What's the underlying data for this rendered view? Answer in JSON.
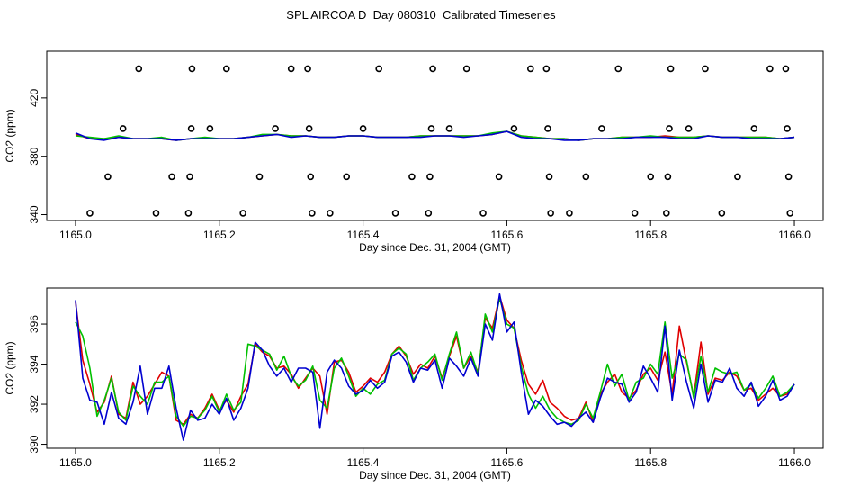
{
  "title": "SPL AIRCOA D  Day 080310  Calibrated Timeseries",
  "colors": {
    "red": "#e00000",
    "green": "#00c000",
    "blue": "#0000d0",
    "axis": "#000000"
  },
  "chart_data": [
    {
      "type": "line",
      "xlabel": "Day since Dec. 31, 2004 (GMT)",
      "ylabel": "CO2 (ppm)",
      "xlim": [
        1164.96,
        1166.04
      ],
      "ylim": [
        336,
        452
      ],
      "xticks": [
        "1165.0",
        "1165.2",
        "1165.4",
        "1165.6",
        "1165.8",
        "1166.0"
      ],
      "xtick_values": [
        1165.0,
        1165.2,
        1165.4,
        1165.6,
        1165.8,
        1166.0
      ],
      "yticks": [
        "340",
        "380",
        "420"
      ],
      "ytick_values": [
        340,
        380,
        420
      ],
      "x": [
        1165.0,
        1165.02,
        1165.04,
        1165.06,
        1165.08,
        1165.1,
        1165.12,
        1165.14,
        1165.16,
        1165.18,
        1165.2,
        1165.22,
        1165.24,
        1165.26,
        1165.28,
        1165.3,
        1165.32,
        1165.34,
        1165.36,
        1165.38,
        1165.4,
        1165.42,
        1165.44,
        1165.46,
        1165.48,
        1165.5,
        1165.52,
        1165.54,
        1165.56,
        1165.58,
        1165.6,
        1165.62,
        1165.64,
        1165.66,
        1165.68,
        1165.7,
        1165.72,
        1165.74,
        1165.76,
        1165.78,
        1165.8,
        1165.82,
        1165.84,
        1165.86,
        1165.88,
        1165.9,
        1165.92,
        1165.94,
        1165.96,
        1165.98,
        1166.0
      ],
      "series": [
        {
          "color": "#e00000",
          "values": [
            395,
            392,
            392,
            393,
            392,
            392,
            392,
            391,
            392,
            392,
            392,
            392,
            393,
            394,
            395,
            394,
            394,
            393,
            393,
            394,
            394,
            393,
            393,
            393,
            394,
            394,
            394,
            394,
            394,
            395,
            397,
            394,
            393,
            392,
            392,
            391,
            392,
            392,
            393,
            393,
            393,
            394,
            393,
            393,
            394,
            393,
            393,
            393,
            393,
            392,
            393
          ]
        },
        {
          "color": "#00c000",
          "values": [
            394,
            393,
            392,
            394,
            392,
            392,
            393,
            391,
            392,
            393,
            392,
            392,
            393,
            395,
            395,
            394,
            394,
            393,
            393,
            394,
            394,
            393,
            393,
            393,
            394,
            394,
            394,
            394,
            394,
            396,
            397,
            394,
            393,
            392,
            392,
            391,
            392,
            392,
            393,
            393,
            394,
            393,
            393,
            393,
            394,
            393,
            393,
            393,
            393,
            392,
            393
          ]
        },
        {
          "color": "#0000d0",
          "values": [
            396,
            392,
            391,
            393,
            392,
            392,
            392,
            391,
            392,
            392,
            392,
            392,
            393,
            394,
            395,
            393,
            394,
            393,
            393,
            394,
            394,
            393,
            393,
            393,
            393,
            394,
            394,
            393,
            394,
            395,
            397,
            393,
            392,
            392,
            391,
            391,
            392,
            392,
            392,
            393,
            393,
            393,
            392,
            392,
            394,
            393,
            393,
            392,
            392,
            392,
            393
          ]
        }
      ],
      "circles": [
        {
          "x": 1165.02,
          "y": 341
        },
        {
          "x": 1165.045,
          "y": 366
        },
        {
          "x": 1165.066,
          "y": 399
        },
        {
          "x": 1165.088,
          "y": 440
        },
        {
          "x": 1165.112,
          "y": 341
        },
        {
          "x": 1165.134,
          "y": 366
        },
        {
          "x": 1165.157,
          "y": 341
        },
        {
          "x": 1165.159,
          "y": 366
        },
        {
          "x": 1165.161,
          "y": 399
        },
        {
          "x": 1165.162,
          "y": 440
        },
        {
          "x": 1165.187,
          "y": 399
        },
        {
          "x": 1165.21,
          "y": 440
        },
        {
          "x": 1165.233,
          "y": 341
        },
        {
          "x": 1165.256,
          "y": 366
        },
        {
          "x": 1165.278,
          "y": 399
        },
        {
          "x": 1165.3,
          "y": 440
        },
        {
          "x": 1165.323,
          "y": 440
        },
        {
          "x": 1165.325,
          "y": 399
        },
        {
          "x": 1165.327,
          "y": 366
        },
        {
          "x": 1165.329,
          "y": 341
        },
        {
          "x": 1165.354,
          "y": 341
        },
        {
          "x": 1165.377,
          "y": 366
        },
        {
          "x": 1165.4,
          "y": 399
        },
        {
          "x": 1165.422,
          "y": 440
        },
        {
          "x": 1165.445,
          "y": 341
        },
        {
          "x": 1165.468,
          "y": 366
        },
        {
          "x": 1165.491,
          "y": 341
        },
        {
          "x": 1165.493,
          "y": 366
        },
        {
          "x": 1165.495,
          "y": 399
        },
        {
          "x": 1165.497,
          "y": 440
        },
        {
          "x": 1165.52,
          "y": 399
        },
        {
          "x": 1165.544,
          "y": 440
        },
        {
          "x": 1165.567,
          "y": 341
        },
        {
          "x": 1165.589,
          "y": 366
        },
        {
          "x": 1165.61,
          "y": 399
        },
        {
          "x": 1165.633,
          "y": 440
        },
        {
          "x": 1165.655,
          "y": 440
        },
        {
          "x": 1165.657,
          "y": 399
        },
        {
          "x": 1165.659,
          "y": 366
        },
        {
          "x": 1165.661,
          "y": 341
        },
        {
          "x": 1165.687,
          "y": 341
        },
        {
          "x": 1165.71,
          "y": 366
        },
        {
          "x": 1165.732,
          "y": 399
        },
        {
          "x": 1165.755,
          "y": 440
        },
        {
          "x": 1165.778,
          "y": 341
        },
        {
          "x": 1165.8,
          "y": 366
        },
        {
          "x": 1165.822,
          "y": 341
        },
        {
          "x": 1165.824,
          "y": 366
        },
        {
          "x": 1165.826,
          "y": 399
        },
        {
          "x": 1165.828,
          "y": 440
        },
        {
          "x": 1165.853,
          "y": 399
        },
        {
          "x": 1165.876,
          "y": 440
        },
        {
          "x": 1165.899,
          "y": 341
        },
        {
          "x": 1165.921,
          "y": 366
        },
        {
          "x": 1165.944,
          "y": 399
        },
        {
          "x": 1165.966,
          "y": 440
        },
        {
          "x": 1165.988,
          "y": 440
        },
        {
          "x": 1165.99,
          "y": 399
        },
        {
          "x": 1165.992,
          "y": 366
        },
        {
          "x": 1165.994,
          "y": 341
        }
      ]
    },
    {
      "type": "line",
      "xlabel": "Day since Dec. 31, 2004 (GMT)",
      "ylabel": "CO2 (ppm)",
      "xlim": [
        1164.96,
        1166.04
      ],
      "ylim": [
        389.8,
        397.8
      ],
      "xticks": [
        "1165.0",
        "1165.2",
        "1165.4",
        "1165.6",
        "1165.8",
        "1166.0"
      ],
      "xtick_values": [
        1165.0,
        1165.2,
        1165.4,
        1165.6,
        1165.8,
        1166.0
      ],
      "yticks": [
        "390",
        "392",
        "394",
        "396"
      ],
      "ytick_values": [
        390,
        392,
        394,
        396
      ],
      "x": [
        1165.0,
        1165.01,
        1165.02,
        1165.03,
        1165.04,
        1165.05,
        1165.06,
        1165.07,
        1165.08,
        1165.09,
        1165.1,
        1165.11,
        1165.12,
        1165.13,
        1165.14,
        1165.15,
        1165.16,
        1165.17,
        1165.18,
        1165.19,
        1165.2,
        1165.21,
        1165.22,
        1165.23,
        1165.24,
        1165.25,
        1165.26,
        1165.27,
        1165.28,
        1165.29,
        1165.3,
        1165.31,
        1165.32,
        1165.33,
        1165.34,
        1165.35,
        1165.36,
        1165.37,
        1165.38,
        1165.39,
        1165.4,
        1165.41,
        1165.42,
        1165.43,
        1165.44,
        1165.45,
        1165.46,
        1165.47,
        1165.48,
        1165.49,
        1165.5,
        1165.51,
        1165.52,
        1165.53,
        1165.54,
        1165.55,
        1165.56,
        1165.57,
        1165.58,
        1165.59,
        1165.6,
        1165.61,
        1165.62,
        1165.63,
        1165.64,
        1165.65,
        1165.66,
        1165.67,
        1165.68,
        1165.69,
        1165.7,
        1165.71,
        1165.72,
        1165.73,
        1165.74,
        1165.75,
        1165.76,
        1165.77,
        1165.78,
        1165.79,
        1165.8,
        1165.81,
        1165.82,
        1165.83,
        1165.84,
        1165.85,
        1165.86,
        1165.87,
        1165.88,
        1165.89,
        1165.9,
        1165.91,
        1165.92,
        1165.93,
        1165.94,
        1165.95,
        1165.96,
        1165.97,
        1165.98,
        1165.99,
        1166.0
      ],
      "series": [
        {
          "color": "#e00000",
          "values": [
            397.1,
            394.2,
            393.0,
            391.6,
            392.1,
            393.4,
            391.5,
            391.3,
            393.1,
            392.0,
            392.4,
            393.0,
            393.6,
            393.4,
            391.2,
            391.0,
            391.5,
            391.3,
            391.8,
            392.5,
            391.7,
            392.2,
            391.6,
            392.4,
            393.0,
            395.0,
            394.6,
            394.4,
            393.8,
            393.9,
            393.5,
            392.8,
            393.3,
            393.8,
            393.4,
            391.5,
            394.1,
            394.2,
            393.6,
            392.6,
            392.9,
            393.3,
            393.1,
            393.6,
            394.5,
            394.9,
            394.4,
            393.5,
            394.0,
            393.8,
            394.4,
            393.3,
            394.4,
            395.4,
            393.8,
            394.4,
            393.6,
            396.3,
            395.8,
            397.4,
            396.2,
            395.8,
            394.2,
            393.0,
            392.5,
            393.2,
            392.1,
            391.8,
            391.4,
            391.2,
            391.3,
            392.1,
            391.1,
            392.5,
            393.1,
            393.5,
            392.6,
            392.3,
            392.7,
            393.5,
            393.8,
            393.2,
            394.6,
            392.5,
            395.9,
            394.1,
            392.4,
            395.1,
            392.5,
            393.3,
            393.2,
            393.6,
            393.4,
            392.7,
            392.8,
            392.2,
            392.5,
            392.8,
            392.4,
            392.5,
            393.0
          ]
        },
        {
          "color": "#00c000",
          "values": [
            396.1,
            395.4,
            393.8,
            391.4,
            392.2,
            393.3,
            391.6,
            391.2,
            392.9,
            392.4,
            392.0,
            393.1,
            393.1,
            393.4,
            391.4,
            390.9,
            391.4,
            391.3,
            391.7,
            392.4,
            391.6,
            392.5,
            391.7,
            392.1,
            395.0,
            394.9,
            394.7,
            394.5,
            393.7,
            394.4,
            393.4,
            392.9,
            393.2,
            393.9,
            392.2,
            391.8,
            393.8,
            394.3,
            393.4,
            392.4,
            392.8,
            392.5,
            393.0,
            393.2,
            394.5,
            394.8,
            394.5,
            393.2,
            393.8,
            394.1,
            394.5,
            393.2,
            394.5,
            395.6,
            393.8,
            394.6,
            393.5,
            396.5,
            395.6,
            397.3,
            396.0,
            395.8,
            393.9,
            392.5,
            391.8,
            392.4,
            391.7,
            391.3,
            391.1,
            391.0,
            391.2,
            392.0,
            391.3,
            392.6,
            394.0,
            392.9,
            393.5,
            392.2,
            393.1,
            393.3,
            394.0,
            393.5,
            396.1,
            393.3,
            394.5,
            394.2,
            392.3,
            394.4,
            392.6,
            393.8,
            393.6,
            393.5,
            393.6,
            392.7,
            393.0,
            392.3,
            392.8,
            393.4,
            392.4,
            392.6,
            393.0
          ]
        },
        {
          "color": "#0000d0",
          "values": [
            397.2,
            393.3,
            392.2,
            392.1,
            391.0,
            392.6,
            391.3,
            391.0,
            392.1,
            393.9,
            391.5,
            392.8,
            392.8,
            393.9,
            391.8,
            390.2,
            391.7,
            391.2,
            391.3,
            392.0,
            391.5,
            392.3,
            391.2,
            391.8,
            392.8,
            395.1,
            394.7,
            393.9,
            393.4,
            393.8,
            393.1,
            393.8,
            393.8,
            393.6,
            390.8,
            393.6,
            394.2,
            393.8,
            392.9,
            392.5,
            392.7,
            393.2,
            392.8,
            393.1,
            394.4,
            394.6,
            394.1,
            393.1,
            393.8,
            393.7,
            394.2,
            392.8,
            394.3,
            393.9,
            393.4,
            394.3,
            393.4,
            396.0,
            395.2,
            397.5,
            395.6,
            396.1,
            393.6,
            391.5,
            392.2,
            391.9,
            391.4,
            391.0,
            391.1,
            390.9,
            391.3,
            391.6,
            391.1,
            392.3,
            393.3,
            393.1,
            393.0,
            392.1,
            392.6,
            393.9,
            393.3,
            392.6,
            395.9,
            392.2,
            394.7,
            393.1,
            391.8,
            394.0,
            392.1,
            393.2,
            393.1,
            393.8,
            392.8,
            392.4,
            393.1,
            391.9,
            392.4,
            393.2,
            392.2,
            392.4,
            393.0
          ]
        }
      ]
    }
  ]
}
